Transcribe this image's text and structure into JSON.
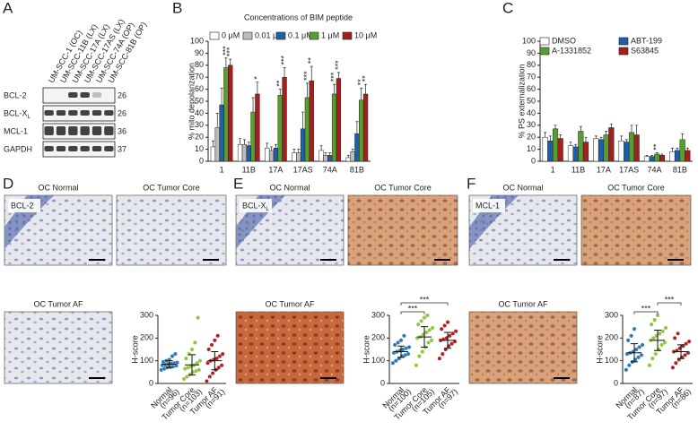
{
  "panel_labels": [
    "A",
    "B",
    "C",
    "D",
    "E",
    "F"
  ],
  "western_blot": {
    "samples": [
      "UM-SCC-1 (OC)",
      "UM-SCC-11B (LX)",
      "UM-SCC-17A (LX)",
      "UM-SCC-17AS (LX)",
      "UM-SCC-74A (OP)",
      "UM-SCC-81B (OP)"
    ],
    "rows": [
      {
        "label": "BCL-2",
        "mw": 26
      },
      {
        "label": "BCL-X",
        "sub": "L",
        "mw": 26
      },
      {
        "label": "MCL-1",
        "mw": 36
      },
      {
        "label": "GAPDH",
        "mw": 37
      }
    ]
  },
  "images": [
    {
      "labels": [
        "OC Normal",
        "OC Tumor Core",
        "OC Tumor AF"
      ],
      "stain": {
        "text": "BCL-2"
      }
    },
    {
      "labels": [
        "OC Normal",
        "OC Tumor Core",
        "OC Tumor AF"
      ],
      "stain": {
        "text": "BCL-X",
        "sub": "L"
      }
    },
    {
      "labels": [
        "OC Normal",
        "OC Tumor Core",
        "OC Tumor AF"
      ],
      "stain": {
        "text": "MCL-1"
      }
    }
  ],
  "chart_data": [
    {
      "type": "bar",
      "title": "Concentrations of BIM peptide",
      "ylabel": "% mito depolarization",
      "categories": [
        "1",
        "11B",
        "17A",
        "17AS",
        "74A",
        "81B"
      ],
      "ylim": [
        0,
        100
      ],
      "yticks": [
        0,
        10,
        20,
        30,
        40,
        50,
        60,
        70,
        80,
        90,
        100
      ],
      "series": [
        {
          "name": "0 μM",
          "color": "#ffffff",
          "values": [
            12,
            14,
            11,
            7,
            9,
            3
          ],
          "errors": [
            5,
            5,
            4,
            3,
            4,
            2
          ],
          "significance": [
            null,
            null,
            null,
            null,
            null,
            null
          ]
        },
        {
          "name": "0.01 μM",
          "color": "#bdbdbd",
          "values": [
            28,
            14,
            9,
            7,
            5,
            8
          ],
          "errors": [
            12,
            4,
            3,
            3,
            2,
            2
          ],
          "significance": [
            null,
            null,
            null,
            null,
            null,
            null
          ]
        },
        {
          "name": "0.1 μM",
          "color": "#1f5fa8",
          "values": [
            47,
            13,
            11,
            27,
            5,
            23
          ],
          "errors": [
            14,
            3,
            3,
            14,
            2,
            10
          ],
          "significance": [
            null,
            null,
            null,
            null,
            null,
            null
          ]
        },
        {
          "name": "1 μM",
          "color": "#5a9e2f",
          "values": [
            78,
            41,
            55,
            53,
            56,
            51
          ],
          "errors": [
            8,
            12,
            5,
            12,
            8,
            10
          ],
          "significance": [
            "***",
            null,
            "**",
            "***",
            "***",
            "**"
          ]
        },
        {
          "name": "10 μM",
          "color": "#a3201f",
          "values": [
            80,
            56,
            70,
            67,
            69,
            56
          ],
          "errors": [
            5,
            10,
            8,
            12,
            5,
            8
          ],
          "significance": [
            "***",
            "*",
            "***",
            "**",
            "***",
            "**"
          ]
        }
      ]
    },
    {
      "type": "bar",
      "ylabel": "% PS externalization",
      "categories": [
        "1",
        "11B",
        "17A",
        "17AS",
        "74A",
        "81B"
      ],
      "ylim": [
        0,
        100
      ],
      "yticks": [
        0,
        10,
        20,
        30,
        40,
        50,
        60,
        70,
        80,
        90,
        100
      ],
      "series": [
        {
          "name": "DMSO",
          "color": "#ffffff",
          "values": [
            20,
            13,
            19,
            17,
            4,
            8
          ],
          "errors": [
            4,
            3,
            2,
            4,
            1,
            3
          ],
          "significance": [
            null,
            null,
            null,
            null,
            null,
            null
          ]
        },
        {
          "name": "ABT-199",
          "color": "#1f5fa8",
          "values": [
            17,
            12,
            18,
            16,
            4,
            9
          ],
          "errors": [
            4,
            2,
            2,
            2,
            1,
            2
          ],
          "significance": [
            null,
            null,
            null,
            null,
            null,
            null
          ]
        },
        {
          "name": "A-1331852",
          "color": "#5a9e2f",
          "values": [
            27,
            25,
            22,
            24,
            6,
            18
          ],
          "errors": [
            3,
            4,
            3,
            6,
            1,
            5
          ],
          "significance": [
            null,
            null,
            null,
            null,
            "**",
            null
          ]
        },
        {
          "name": "S63845",
          "color": "#a3201f",
          "values": [
            19,
            16,
            28,
            22,
            5,
            9
          ],
          "errors": [
            3,
            4,
            3,
            8,
            1,
            2
          ],
          "significance": [
            null,
            null,
            null,
            null,
            null,
            null
          ]
        }
      ]
    },
    {
      "type": "dot",
      "ylabel": "H-score",
      "categories": [
        "Normal",
        "Tumor Core",
        "Tumor AF"
      ],
      "n_labels": [
        "(n=96)",
        "(n=103)",
        "(n=91)"
      ],
      "colors": [
        "#2a7ab8",
        "#8dc63f",
        "#b22222"
      ],
      "ylim": [
        0,
        300
      ],
      "yticks": [
        0,
        100,
        200,
        300
      ],
      "points": [
        [
          60,
          65,
          70,
          72,
          75,
          78,
          80,
          82,
          85,
          88,
          90,
          92,
          95,
          100,
          105,
          120,
          130
        ],
        [
          20,
          30,
          40,
          50,
          55,
          60,
          65,
          70,
          75,
          80,
          90,
          100,
          110,
          130,
          150,
          180,
          290
        ],
        [
          10,
          30,
          45,
          60,
          70,
          80,
          90,
          100,
          105,
          110,
          120,
          130,
          150,
          170,
          190,
          210
        ]
      ],
      "means": [
        85,
        82,
        100
      ],
      "sd": [
        15,
        45,
        40
      ],
      "brackets": []
    },
    {
      "type": "dot",
      "ylabel": "H-score",
      "categories": [
        "Normal",
        "Tumor Core",
        "Tumor AF"
      ],
      "n_labels": [
        "(n=100)",
        "(n=105)",
        "(n=97)"
      ],
      "colors": [
        "#2a7ab8",
        "#8dc63f",
        "#b22222"
      ],
      "ylim": [
        0,
        300
      ],
      "yticks": [
        0,
        100,
        200,
        300
      ],
      "points": [
        [
          90,
          100,
          110,
          120,
          125,
          130,
          135,
          140,
          145,
          150,
          155,
          160,
          170,
          180,
          190,
          210
        ],
        [
          80,
          120,
          140,
          160,
          180,
          190,
          200,
          205,
          215,
          225,
          235,
          245,
          260,
          275,
          290,
          300
        ],
        [
          110,
          130,
          150,
          165,
          175,
          185,
          190,
          195,
          200,
          210,
          220,
          230,
          240,
          255,
          270
        ]
      ],
      "means": [
        140,
        205,
        190
      ],
      "sd": [
        25,
        45,
        35
      ],
      "brackets": [
        {
          "groups": [
            "Normal",
            "Tumor Core"
          ],
          "label": "***"
        },
        {
          "groups": [
            "Normal",
            "Tumor AF"
          ],
          "label": "***"
        }
      ]
    },
    {
      "type": "dot",
      "ylabel": "H-score",
      "categories": [
        "Normal",
        "Tumor Core",
        "Tumor AF"
      ],
      "n_labels": [
        "(n=87)",
        "(n=97)",
        "(n=86)"
      ],
      "colors": [
        "#2a7ab8",
        "#8dc63f",
        "#b22222"
      ],
      "ylim": [
        0,
        300
      ],
      "yticks": [
        0,
        100,
        200,
        300
      ],
      "points": [
        [
          60,
          80,
          95,
          105,
          115,
          125,
          130,
          135,
          140,
          150,
          160,
          170,
          190,
          210,
          240
        ],
        [
          80,
          110,
          130,
          150,
          170,
          180,
          190,
          200,
          210,
          220,
          230,
          245,
          260,
          280,
          300
        ],
        [
          70,
          90,
          105,
          115,
          125,
          135,
          140,
          145,
          155,
          165,
          175,
          185,
          200,
          220
        ]
      ],
      "means": [
        135,
        190,
        140
      ],
      "sd": [
        40,
        45,
        30
      ],
      "brackets": [
        {
          "groups": [
            "Normal",
            "Tumor Core"
          ],
          "label": "***"
        },
        {
          "groups": [
            "Tumor Core",
            "Tumor AF"
          ],
          "label": "***"
        }
      ]
    }
  ]
}
